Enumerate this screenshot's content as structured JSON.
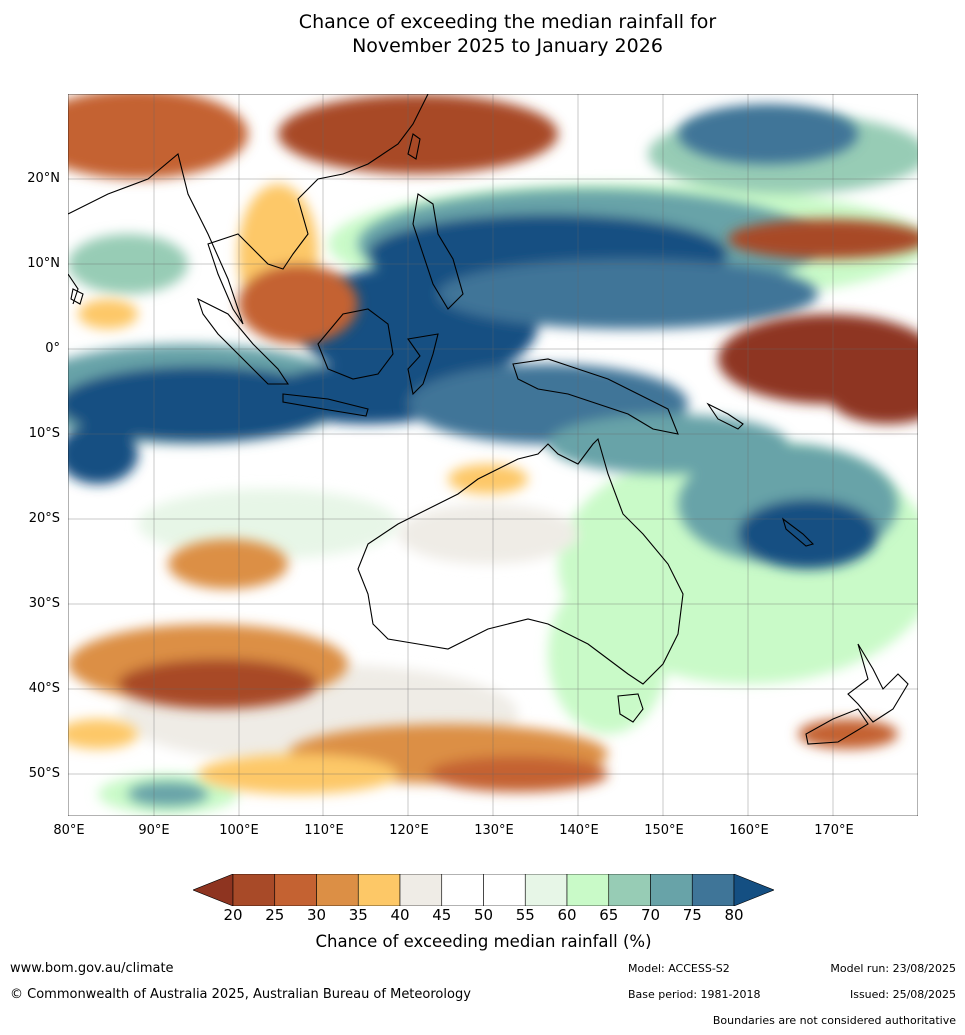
{
  "title_line1": "Chance of exceeding the median rainfall for",
  "title_line2": "November 2025 to January 2026",
  "lat_labels": [
    "20°N",
    "10°N",
    "0°",
    "10°S",
    "20°S",
    "30°S",
    "40°S",
    "50°S"
  ],
  "lon_labels": [
    "80°E",
    "90°E",
    "100°E",
    "110°E",
    "120°E",
    "130°E",
    "140°E",
    "150°E",
    "160°E",
    "170°E"
  ],
  "colorbar": {
    "ticks": [
      "20",
      "25",
      "30",
      "35",
      "40",
      "45",
      "50",
      "55",
      "60",
      "65",
      "70",
      "75",
      "80"
    ],
    "colors": [
      "#8e3420",
      "#a84a28",
      "#c46232",
      "#dc8f45",
      "#fdc867",
      "#efece6",
      "#ffffff",
      "#ffffff",
      "#e7f6e7",
      "#c9fac8",
      "#97ccb5",
      "#68a3a8",
      "#3f7598",
      "#144f82"
    ],
    "label": "Chance of exceeding median rainfall (%)"
  },
  "footer": {
    "website": "www.bom.gov.au/climate",
    "copyright": "© Commonwealth of Australia 2025, Australian Bureau of Meteorology",
    "model": "Model: ACCESS-S2",
    "base_period": "Base period: 1981-2018",
    "model_run": "Model run: 23/08/2025",
    "issued": "Issued: 25/08/2025",
    "disclaimer": "Boundaries are not considered authoritative"
  }
}
